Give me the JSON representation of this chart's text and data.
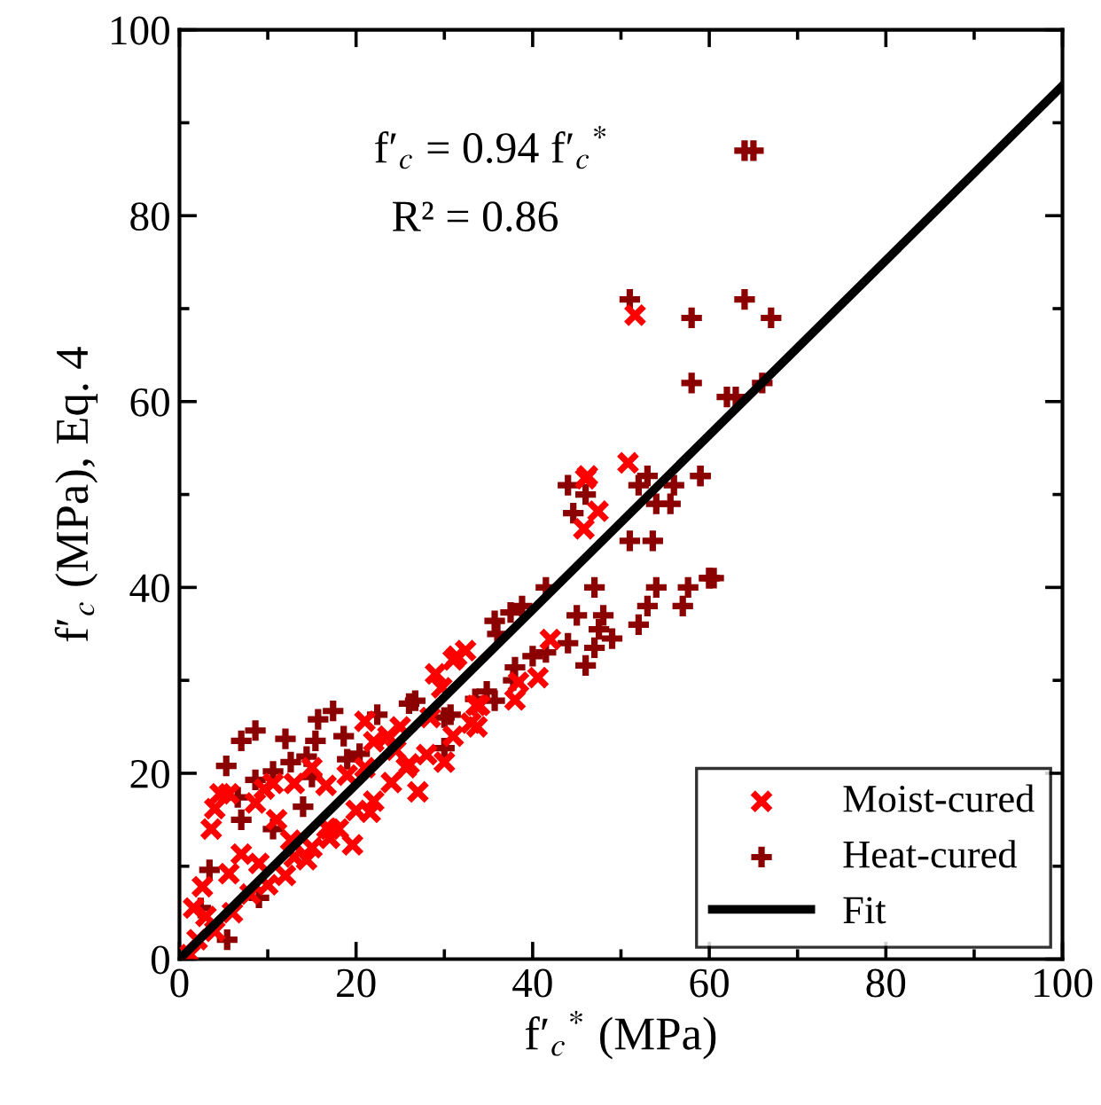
{
  "chart_data": {
    "type": "scatter",
    "xlabel": "f′$_{c}$$^{*}$ (MPa)",
    "ylabel": "f′$_{c}$ (MPa), Eq. 4",
    "annotations": [
      "f′$_{c}$ = 0.94 f′$_{c}$$^{*}$",
      "R² = 0.86"
    ],
    "xlim": [
      0,
      100
    ],
    "ylim": [
      0,
      100
    ],
    "xticks": [
      0,
      20,
      40,
      60,
      80,
      100
    ],
    "yticks": [
      0,
      20,
      40,
      60,
      80,
      100
    ],
    "grid": false,
    "legend": "bottom right",
    "series": [
      {
        "name": "Moist-cured",
        "marker": "cross",
        "color": "#ff0000",
        "x": [
          3.6,
          4.6,
          5.6,
          4,
          8.6,
          9.6,
          10.6,
          13,
          15,
          16.6,
          19,
          22,
          23.6,
          25,
          25.7,
          21,
          21.6,
          17,
          14.4,
          19.6,
          16.7,
          12.6,
          9,
          7,
          5.6,
          2.6,
          1.6,
          3,
          2,
          1.2,
          29,
          31,
          32.4,
          29.7,
          33.6,
          30,
          28.4,
          21,
          33,
          50.8,
          46,
          46.2,
          47.4,
          45.8,
          42,
          31.4,
          34,
          38,
          40.6,
          38.4,
          33.7,
          31,
          51.6,
          20,
          22,
          24,
          26,
          18,
          28,
          27,
          12,
          10,
          8,
          15,
          6,
          4,
          17,
          11,
          13,
          24.5
        ],
        "values": [
          14,
          17.8,
          17.8,
          16.2,
          16.8,
          18.3,
          18.9,
          18.9,
          20.6,
          18.7,
          19.8,
          23.4,
          24,
          25,
          20.6,
          20.6,
          15.8,
          14,
          10.7,
          12.3,
          14.1,
          12.8,
          10.3,
          11.3,
          9.2,
          7.8,
          5.5,
          4.6,
          2.1,
          0.5,
          30.7,
          32.2,
          33.2,
          29.2,
          27.3,
          21.2,
          26,
          25.6,
          25.4,
          53.4,
          51.7,
          52,
          48.2,
          46.3,
          34.4,
          32.6,
          27.3,
          27.9,
          30.3,
          29.8,
          25,
          24,
          69.3,
          16,
          17,
          19,
          21,
          14,
          22,
          18,
          9,
          8,
          7,
          12,
          5,
          3,
          13,
          15,
          11,
          22.5
        ]
      },
      {
        "name": "Heat-cured",
        "marker": "plus",
        "color": "#8b0000",
        "x": [
          44,
          46,
          44.6,
          52,
          53,
          56,
          59,
          54,
          55.6,
          51,
          53.6,
          47,
          54,
          57.6,
          60,
          53,
          57,
          52,
          45,
          48,
          47.5,
          49,
          47,
          46,
          44,
          41.5,
          38.8,
          37.5,
          35.7,
          36,
          41.5,
          40,
          38,
          37.8,
          34.8,
          35.7,
          30.7,
          26.7,
          30,
          65,
          64,
          64,
          67,
          58,
          58,
          66,
          62,
          63,
          59,
          60,
          60.5,
          51,
          5.3,
          7,
          8.6,
          12,
          15.7,
          17.4,
          15.4,
          18.6,
          14.4,
          12.6,
          10.6,
          8.6,
          15,
          20.4,
          22.4,
          26,
          19,
          14,
          6.6,
          7,
          3.4,
          9,
          5.4,
          2.4,
          10.6,
          30,
          33.5
        ],
        "values": [
          51,
          50,
          48,
          51,
          52,
          51,
          52,
          49,
          49,
          45,
          45,
          40,
          40,
          40,
          41,
          38,
          38,
          36,
          37,
          37,
          35.5,
          34.5,
          33.5,
          31.6,
          34,
          40,
          38,
          37.3,
          36.4,
          35,
          33,
          32.6,
          31.4,
          30,
          28.8,
          27.8,
          26.3,
          27.8,
          22.7,
          87,
          87,
          71,
          69,
          69,
          62,
          62,
          60.5,
          60.5,
          52,
          41,
          41,
          71,
          20.8,
          23.5,
          24.6,
          23.7,
          25.8,
          26.7,
          23.5,
          24,
          21.8,
          21.2,
          20.2,
          19.3,
          19.6,
          22.1,
          26.3,
          27.5,
          21.5,
          16.4,
          17.4,
          15,
          9.6,
          6.6,
          2.1,
          5.5,
          14,
          26,
          28
        ]
      },
      {
        "name": "Fit",
        "type": "line",
        "color": "#000000",
        "line_style": "solid",
        "marker": "none",
        "x": [
          0,
          100
        ],
        "values": [
          0,
          94
        ]
      }
    ]
  }
}
